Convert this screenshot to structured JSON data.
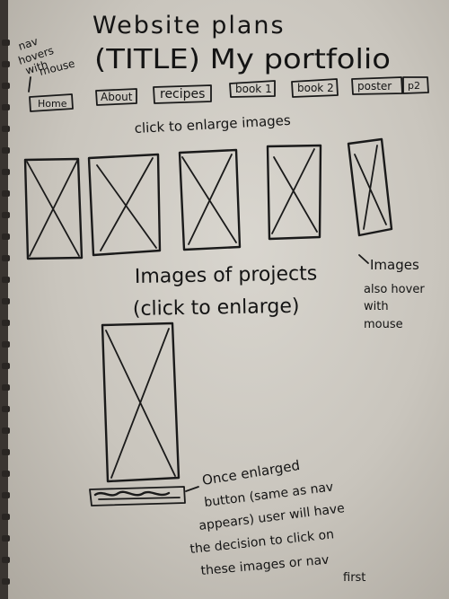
{
  "notes": {
    "title_line1": "Website plans",
    "title_line2": "(TITLE) My portfolio",
    "nav_note_line1": "nav",
    "nav_note_line2": "hovers",
    "nav_note_line3": "with",
    "nav_note_line4": "mouse",
    "click_note": "click to enlarge images",
    "projects_line1": "Images of projects",
    "projects_line2": "(click to enlarge)",
    "hover_note_line1": "Images",
    "hover_note_line2": "also hover",
    "hover_note_line3": "with",
    "hover_note_line4": "mouse",
    "enlarged_line1": "Once enlarged",
    "enlarged_line2": "button (same as nav",
    "enlarged_line3": "appears) user will have",
    "enlarged_line4": "the decision to click on",
    "enlarged_line5": "these images or nav",
    "enlarged_line6": "first"
  },
  "nav": {
    "items": [
      "Home",
      "About",
      "recipes",
      "book 1",
      "book 2",
      "poster",
      "p2"
    ]
  }
}
